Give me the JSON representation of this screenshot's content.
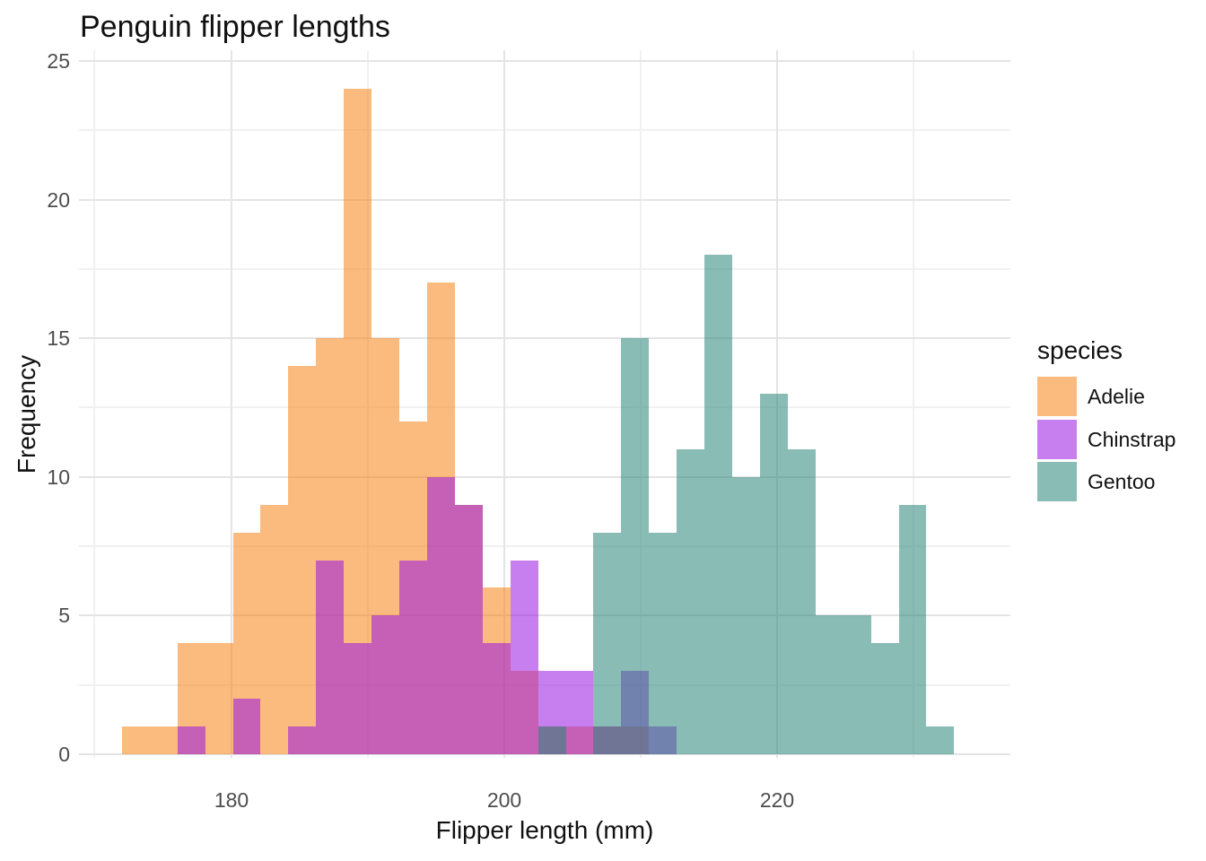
{
  "title": "Penguin flipper lengths",
  "axes": {
    "x": {
      "label": "Flipper length (mm)",
      "ticks": [
        "180",
        "200",
        "220"
      ],
      "tick_values": [
        180,
        200,
        220
      ],
      "minor_values": [
        170,
        190,
        210,
        230
      ]
    },
    "y": {
      "label": "Frequency",
      "ticks": [
        "0",
        "5",
        "10",
        "15",
        "20",
        "25"
      ],
      "tick_values": [
        0,
        5,
        10,
        15,
        20,
        25
      ],
      "minor_values": [
        2.5,
        7.5,
        12.5,
        17.5,
        22.5
      ]
    }
  },
  "legend": {
    "title": "species",
    "items": [
      {
        "label": "Adelie",
        "color": "#F88214"
      },
      {
        "label": "Chinstrap",
        "color": "#9916E4"
      },
      {
        "label": "Gentoo",
        "color": "#2A857A"
      }
    ]
  },
  "colors": {
    "adelie": "#F88214",
    "chinstrap": "#9916E4",
    "gentoo": "#2A857A",
    "fill_alpha": 0.55,
    "grid_major": "#e4e4e4",
    "grid_minor": "#f1f1f1",
    "tick_text": "#4d4d4d"
  },
  "chart_data": {
    "type": "histogram",
    "title": "Penguin flipper lengths",
    "xlabel": "Flipper length (mm)",
    "ylabel": "Frequency",
    "legend_title": "species",
    "legend_position": "right",
    "grid": true,
    "bin_start": 172,
    "bin_width": 2.0333,
    "bin_count": 30,
    "xlim": [
      168.8,
      237.2
    ],
    "ylim": [
      0,
      25
    ],
    "series": [
      {
        "name": "Adelie",
        "color": "#F88214",
        "counts": [
          1,
          1,
          4,
          4,
          8,
          9,
          14,
          15,
          24,
          15,
          12,
          17,
          9,
          6,
          3,
          1,
          1,
          1,
          1,
          0,
          0,
          0,
          0,
          0,
          0,
          0,
          0,
          0,
          0,
          0
        ]
      },
      {
        "name": "Chinstrap",
        "color": "#9916E4",
        "counts": [
          0,
          0,
          1,
          0,
          2,
          0,
          1,
          7,
          4,
          5,
          7,
          10,
          9,
          4,
          7,
          3,
          3,
          1,
          3,
          1,
          0,
          0,
          0,
          0,
          0,
          0,
          0,
          0,
          0,
          0
        ]
      },
      {
        "name": "Gentoo",
        "color": "#2A857A",
        "counts": [
          0,
          0,
          0,
          0,
          0,
          0,
          0,
          0,
          0,
          0,
          0,
          0,
          0,
          0,
          0,
          1,
          0,
          8,
          15,
          8,
          11,
          18,
          10,
          13,
          11,
          5,
          5,
          4,
          9,
          1
        ]
      }
    ]
  }
}
